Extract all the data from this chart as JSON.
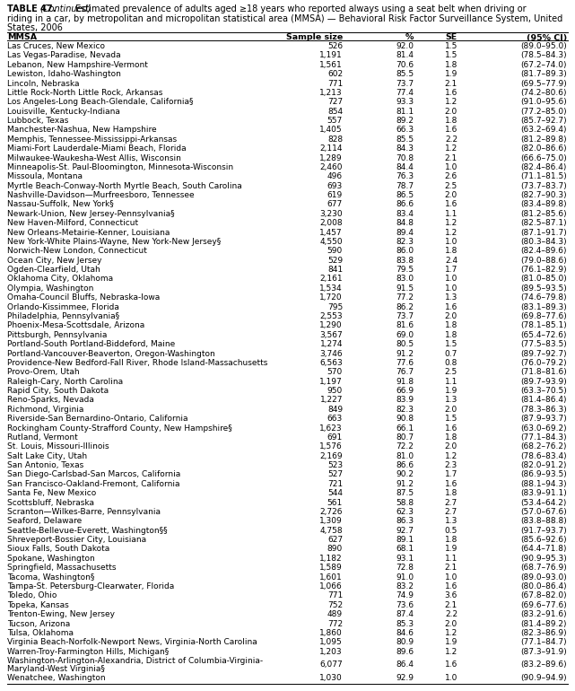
{
  "title_bold": "TABLE 47. ",
  "title_italic": "(Continued)",
  "title_rest": " Estimated prevalence of adults aged ≥18 years who reported always using a seat belt when driving or\nriding in a car, by metropolitan and micropolitan statistical area (MMSA) — Behavioral Risk Factor Surveillance System, United\nStates, 2006",
  "headers": [
    "MMSA",
    "Sample size",
    "%",
    "SE",
    "(95% CI)"
  ],
  "rows": [
    [
      "Las Cruces, New Mexico",
      "526",
      "92.0",
      "1.5",
      "(89.0–95.0)"
    ],
    [
      "Las Vegas-Paradise, Nevada",
      "1,191",
      "81.4",
      "1.5",
      "(78.5–84.3)"
    ],
    [
      "Lebanon, New Hampshire-Vermont",
      "1,561",
      "70.6",
      "1.8",
      "(67.2–74.0)"
    ],
    [
      "Lewiston, Idaho-Washington",
      "602",
      "85.5",
      "1.9",
      "(81.7–89.3)"
    ],
    [
      "Lincoln, Nebraska",
      "771",
      "73.7",
      "2.1",
      "(69.5–77.9)"
    ],
    [
      "Little Rock-North Little Rock, Arkansas",
      "1,213",
      "77.4",
      "1.6",
      "(74.2–80.6)"
    ],
    [
      "Los Angeles-Long Beach-Glendale, California§",
      "727",
      "93.3",
      "1.2",
      "(91.0–95.6)"
    ],
    [
      "Louisville, Kentucky-Indiana",
      "854",
      "81.1",
      "2.0",
      "(77.2–85.0)"
    ],
    [
      "Lubbock, Texas",
      "557",
      "89.2",
      "1.8",
      "(85.7–92.7)"
    ],
    [
      "Manchester-Nashua, New Hampshire",
      "1,405",
      "66.3",
      "1.6",
      "(63.2–69.4)"
    ],
    [
      "Memphis, Tennessee-Mississippi-Arkansas",
      "828",
      "85.5",
      "2.2",
      "(81.2–89.8)"
    ],
    [
      "Miami-Fort Lauderdale-Miami Beach, Florida",
      "2,114",
      "84.3",
      "1.2",
      "(82.0–86.6)"
    ],
    [
      "Milwaukee-Waukesha-West Allis, Wisconsin",
      "1,289",
      "70.8",
      "2.1",
      "(66.6–75.0)"
    ],
    [
      "Minneapolis-St. Paul-Bloomington, Minnesota-Wisconsin",
      "2,460",
      "84.4",
      "1.0",
      "(82.4–86.4)"
    ],
    [
      "Missoula, Montana",
      "496",
      "76.3",
      "2.6",
      "(71.1–81.5)"
    ],
    [
      "Myrtle Beach-Conway-North Myrtle Beach, South Carolina",
      "693",
      "78.7",
      "2.5",
      "(73.7–83.7)"
    ],
    [
      "Nashville-Davidson—Murfreesboro, Tennessee",
      "619",
      "86.5",
      "2.0",
      "(82.7–90.3)"
    ],
    [
      "Nassau-Suffolk, New York§",
      "677",
      "86.6",
      "1.6",
      "(83.4–89.8)"
    ],
    [
      "Newark-Union, New Jersey-Pennsylvania§",
      "3,230",
      "83.4",
      "1.1",
      "(81.2–85.6)"
    ],
    [
      "New Haven-Milford, Connecticut",
      "2,008",
      "84.8",
      "1.2",
      "(82.5–87.1)"
    ],
    [
      "New Orleans-Metairie-Kenner, Louisiana",
      "1,457",
      "89.4",
      "1.2",
      "(87.1–91.7)"
    ],
    [
      "New York-White Plains-Wayne, New York-New Jersey§",
      "4,550",
      "82.3",
      "1.0",
      "(80.3–84.3)"
    ],
    [
      "Norwich-New London, Connecticut",
      "590",
      "86.0",
      "1.8",
      "(82.4–89.6)"
    ],
    [
      "Ocean City, New Jersey",
      "529",
      "83.8",
      "2.4",
      "(79.0–88.6)"
    ],
    [
      "Ogden-Clearfield, Utah",
      "841",
      "79.5",
      "1.7",
      "(76.1–82.9)"
    ],
    [
      "Oklahoma City, Oklahoma",
      "2,161",
      "83.0",
      "1.0",
      "(81.0–85.0)"
    ],
    [
      "Olympia, Washington",
      "1,534",
      "91.5",
      "1.0",
      "(89.5–93.5)"
    ],
    [
      "Omaha-Council Bluffs, Nebraska-Iowa",
      "1,720",
      "77.2",
      "1.3",
      "(74.6–79.8)"
    ],
    [
      "Orlando-Kissimmee, Florida",
      "795",
      "86.2",
      "1.6",
      "(83.1–89.3)"
    ],
    [
      "Philadelphia, Pennsylvania§",
      "2,553",
      "73.7",
      "2.0",
      "(69.8–77.6)"
    ],
    [
      "Phoenix-Mesa-Scottsdale, Arizona",
      "1,290",
      "81.6",
      "1.8",
      "(78.1–85.1)"
    ],
    [
      "Pittsburgh, Pennsylvania",
      "3,567",
      "69.0",
      "1.8",
      "(65.4–72.6)"
    ],
    [
      "Portland-South Portland-Biddeford, Maine",
      "1,274",
      "80.5",
      "1.5",
      "(77.5–83.5)"
    ],
    [
      "Portland-Vancouver-Beaverton, Oregon-Washington",
      "3,746",
      "91.2",
      "0.7",
      "(89.7–92.7)"
    ],
    [
      "Providence-New Bedford-Fall River, Rhode Island-Massachusetts",
      "6,563",
      "77.6",
      "0.8",
      "(76.0–79.2)"
    ],
    [
      "Provo-Orem, Utah",
      "570",
      "76.7",
      "2.5",
      "(71.8–81.6)"
    ],
    [
      "Raleigh-Cary, North Carolina",
      "1,197",
      "91.8",
      "1.1",
      "(89.7–93.9)"
    ],
    [
      "Rapid City, South Dakota",
      "950",
      "66.9",
      "1.9",
      "(63.3–70.5)"
    ],
    [
      "Reno-Sparks, Nevada",
      "1,227",
      "83.9",
      "1.3",
      "(81.4–86.4)"
    ],
    [
      "Richmond, Virginia",
      "849",
      "82.3",
      "2.0",
      "(78.3–86.3)"
    ],
    [
      "Riverside-San Bernardino-Ontario, California",
      "663",
      "90.8",
      "1.5",
      "(87.9–93.7)"
    ],
    [
      "Rockingham County-Strafford County, New Hampshire§",
      "1,623",
      "66.1",
      "1.6",
      "(63.0–69.2)"
    ],
    [
      "Rutland, Vermont",
      "691",
      "80.7",
      "1.8",
      "(77.1–84.3)"
    ],
    [
      "St. Louis, Missouri-Illinois",
      "1,576",
      "72.2",
      "2.0",
      "(68.2–76.2)"
    ],
    [
      "Salt Lake City, Utah",
      "2,169",
      "81.0",
      "1.2",
      "(78.6–83.4)"
    ],
    [
      "San Antonio, Texas",
      "523",
      "86.6",
      "2.3",
      "(82.0–91.2)"
    ],
    [
      "San Diego-Carlsbad-San Marcos, California",
      "527",
      "90.2",
      "1.7",
      "(86.9–93.5)"
    ],
    [
      "San Francisco-Oakland-Fremont, California",
      "721",
      "91.2",
      "1.6",
      "(88.1–94.3)"
    ],
    [
      "Santa Fe, New Mexico",
      "544",
      "87.5",
      "1.8",
      "(83.9–91.1)"
    ],
    [
      "Scottsbluff, Nebraska",
      "561",
      "58.8",
      "2.7",
      "(53.4–64.2)"
    ],
    [
      "Scranton—Wilkes-Barre, Pennsylvania",
      "2,726",
      "62.3",
      "2.7",
      "(57.0–67.6)"
    ],
    [
      "Seaford, Delaware",
      "1,309",
      "86.3",
      "1.3",
      "(83.8–88.8)"
    ],
    [
      "Seattle-Bellevue-Everett, Washington§§",
      "4,758",
      "92.7",
      "0.5",
      "(91.7–93.7)"
    ],
    [
      "Shreveport-Bossier City, Louisiana",
      "627",
      "89.1",
      "1.8",
      "(85.6–92.6)"
    ],
    [
      "Sioux Falls, South Dakota",
      "890",
      "68.1",
      "1.9",
      "(64.4–71.8)"
    ],
    [
      "Spokane, Washington",
      "1,182",
      "93.1",
      "1.1",
      "(90.9–95.3)"
    ],
    [
      "Springfield, Massachusetts",
      "1,589",
      "72.8",
      "2.1",
      "(68.7–76.9)"
    ],
    [
      "Tacoma, Washington§",
      "1,601",
      "91.0",
      "1.0",
      "(89.0–93.0)"
    ],
    [
      "Tampa-St. Petersburg-Clearwater, Florida",
      "1,066",
      "83.2",
      "1.6",
      "(80.0–86.4)"
    ],
    [
      "Toledo, Ohio",
      "771",
      "74.9",
      "3.6",
      "(67.8–82.0)"
    ],
    [
      "Topeka, Kansas",
      "752",
      "73.6",
      "2.1",
      "(69.6–77.6)"
    ],
    [
      "Trenton-Ewing, New Jersey",
      "489",
      "87.4",
      "2.2",
      "(83.2–91.6)"
    ],
    [
      "Tucson, Arizona",
      "772",
      "85.3",
      "2.0",
      "(81.4–89.2)"
    ],
    [
      "Tulsa, Oklahoma",
      "1,860",
      "84.6",
      "1.2",
      "(82.3–86.9)"
    ],
    [
      "Virginia Beach-Norfolk-Newport News, Virginia-North Carolina",
      "1,095",
      "80.9",
      "1.9",
      "(77.1–84.7)"
    ],
    [
      "Warren-Troy-Farmington Hills, Michigan§",
      "1,203",
      "89.6",
      "1.2",
      "(87.3–91.9)"
    ],
    [
      "Washington-Arlington-Alexandria, District of Columbia-Virginia-\n  Maryland-West Virginia§",
      "6,077",
      "86.4",
      "1.6",
      "(83.2–89.6)"
    ],
    [
      "Wenatchee, Washington",
      "1,030",
      "92.9",
      "1.0",
      "(90.9–94.9)"
    ]
  ],
  "bg_color": "#ffffff",
  "text_color": "#000000",
  "font_size": 6.5,
  "title_font_size": 7.0,
  "header_font_size": 6.8
}
